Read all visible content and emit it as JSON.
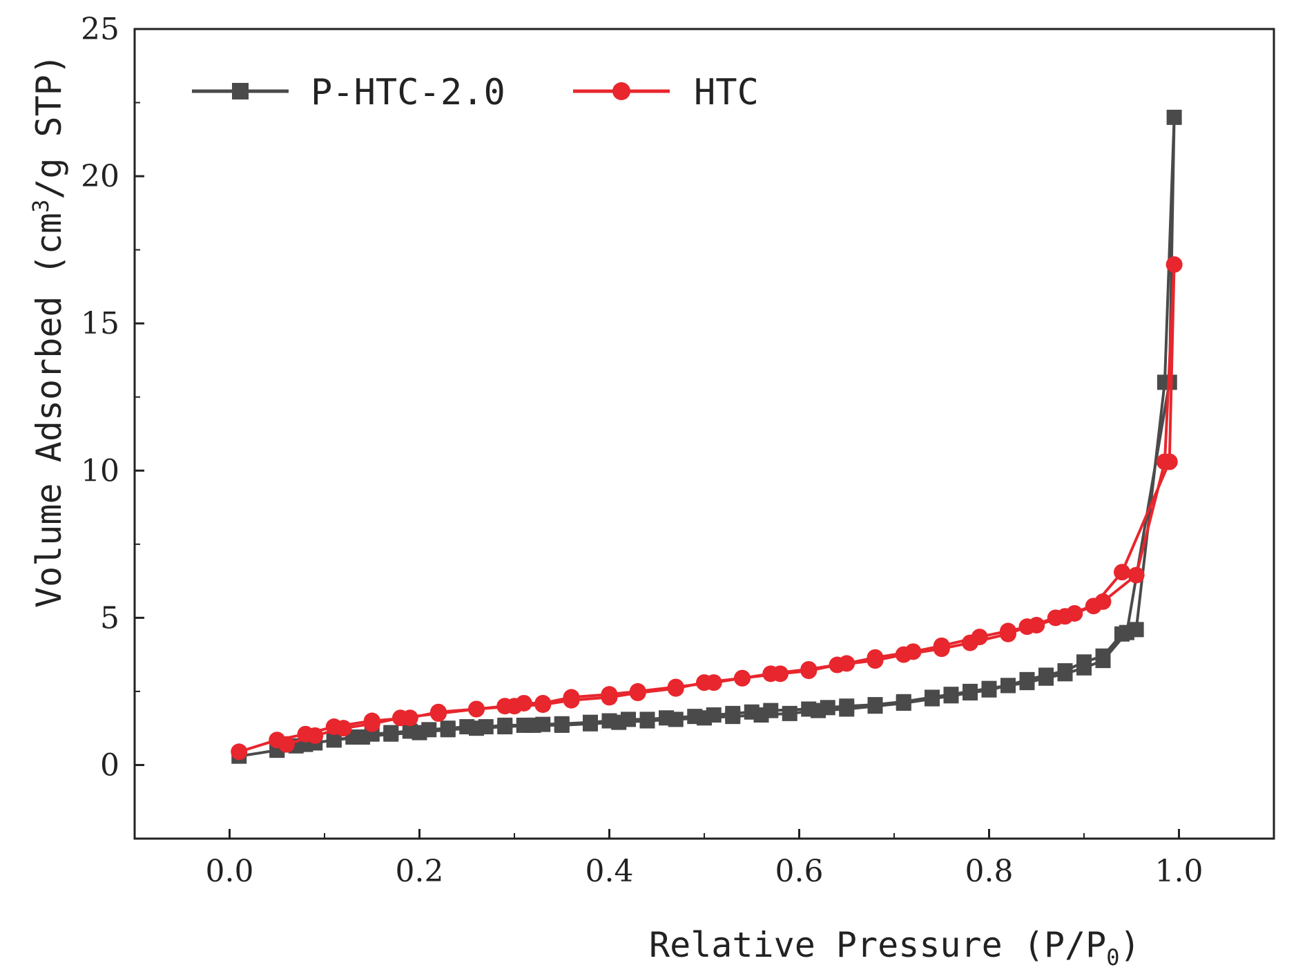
{
  "chart_data": {
    "type": "line",
    "xlabel": "Relative Pressure (P/P0)",
    "xlabel_parts": {
      "main": "Relative Pressure (P/P",
      "sub": "0",
      "close": ")"
    },
    "ylabel": "Volume Adsorbed (cm3/g STP)",
    "ylabel_parts": {
      "main": "Volume Adsorbed (cm",
      "sup": "3",
      "rest": "/g STP)"
    },
    "xlim": [
      -0.1,
      1.1
    ],
    "ylim": [
      -2.5,
      25
    ],
    "xticks": [
      0.0,
      0.2,
      0.4,
      0.6,
      0.8,
      1.0
    ],
    "xtick_labels": [
      "0.0",
      "0.2",
      "0.4",
      "0.6",
      "0.8",
      "1.0"
    ],
    "yticks": [
      0,
      5,
      10,
      15,
      20,
      25
    ],
    "ytick_labels": [
      "0",
      "5",
      "10",
      "15",
      "20",
      "25"
    ],
    "grid": false,
    "legend_position": "top-left",
    "series": [
      {
        "name": "P-HTC-2.0",
        "color": "#4a4a4a",
        "marker": "square",
        "x": [
          0.01,
          0.05,
          0.07,
          0.09,
          0.11,
          0.13,
          0.15,
          0.17,
          0.19,
          0.21,
          0.23,
          0.25,
          0.27,
          0.29,
          0.31,
          0.33,
          0.35,
          0.38,
          0.4,
          0.42,
          0.44,
          0.46,
          0.49,
          0.51,
          0.53,
          0.55,
          0.57,
          0.61,
          0.63,
          0.65,
          0.68,
          0.71,
          0.74,
          0.76,
          0.78,
          0.8,
          0.82,
          0.84,
          0.86,
          0.88,
          0.9,
          0.92,
          0.945,
          0.99,
          0.995,
          0.985,
          0.955,
          0.94,
          0.92,
          0.9,
          0.88,
          0.86,
          0.84,
          0.82,
          0.8,
          0.78,
          0.76,
          0.74,
          0.71,
          0.68,
          0.65,
          0.62,
          0.59,
          0.56,
          0.53,
          0.5,
          0.47,
          0.44,
          0.41,
          0.38,
          0.35,
          0.32,
          0.29,
          0.26,
          0.23,
          0.2,
          0.17,
          0.14,
          0.11,
          0.08,
          0.05
        ],
        "y": [
          0.3,
          0.5,
          0.65,
          0.75,
          0.85,
          0.95,
          1.05,
          1.1,
          1.15,
          1.2,
          1.25,
          1.3,
          1.3,
          1.35,
          1.35,
          1.38,
          1.4,
          1.45,
          1.5,
          1.55,
          1.55,
          1.6,
          1.65,
          1.7,
          1.75,
          1.8,
          1.85,
          1.9,
          1.95,
          2.0,
          2.05,
          2.15,
          2.3,
          2.4,
          2.5,
          2.6,
          2.7,
          2.8,
          2.95,
          3.1,
          3.3,
          3.55,
          4.5,
          13.0,
          22.0,
          13.0,
          4.6,
          4.45,
          3.7,
          3.5,
          3.2,
          3.05,
          2.9,
          2.7,
          2.55,
          2.45,
          2.35,
          2.25,
          2.1,
          2.0,
          1.9,
          1.85,
          1.75,
          1.7,
          1.65,
          1.6,
          1.55,
          1.5,
          1.45,
          1.4,
          1.35,
          1.35,
          1.3,
          1.25,
          1.2,
          1.1,
          1.05,
          0.95,
          0.85,
          0.7,
          0.55
        ]
      },
      {
        "name": "HTC",
        "color": "#e8262d",
        "marker": "circle",
        "x": [
          0.01,
          0.05,
          0.08,
          0.11,
          0.15,
          0.19,
          0.22,
          0.26,
          0.29,
          0.31,
          0.33,
          0.36,
          0.4,
          0.43,
          0.47,
          0.51,
          0.54,
          0.58,
          0.61,
          0.64,
          0.68,
          0.71,
          0.75,
          0.78,
          0.82,
          0.84,
          0.87,
          0.89,
          0.91,
          0.94,
          0.99,
          0.995,
          0.985,
          0.955,
          0.92,
          0.88,
          0.85,
          0.82,
          0.79,
          0.75,
          0.72,
          0.68,
          0.65,
          0.61,
          0.57,
          0.54,
          0.5,
          0.47,
          0.43,
          0.4,
          0.36,
          0.33,
          0.3,
          0.26,
          0.22,
          0.18,
          0.15,
          0.12,
          0.09,
          0.06
        ],
        "y": [
          0.45,
          0.85,
          1.05,
          1.3,
          1.5,
          1.6,
          1.8,
          1.9,
          2.0,
          2.1,
          2.1,
          2.3,
          2.4,
          2.5,
          2.65,
          2.8,
          2.95,
          3.1,
          3.2,
          3.4,
          3.55,
          3.75,
          3.95,
          4.15,
          4.45,
          4.7,
          5.0,
          5.15,
          5.4,
          6.55,
          10.3,
          17.0,
          10.3,
          6.45,
          5.55,
          5.05,
          4.75,
          4.55,
          4.35,
          4.05,
          3.85,
          3.65,
          3.45,
          3.25,
          3.1,
          2.95,
          2.8,
          2.6,
          2.45,
          2.3,
          2.2,
          2.05,
          2.0,
          1.9,
          1.75,
          1.6,
          1.4,
          1.25,
          1.0,
          0.7
        ]
      }
    ]
  }
}
